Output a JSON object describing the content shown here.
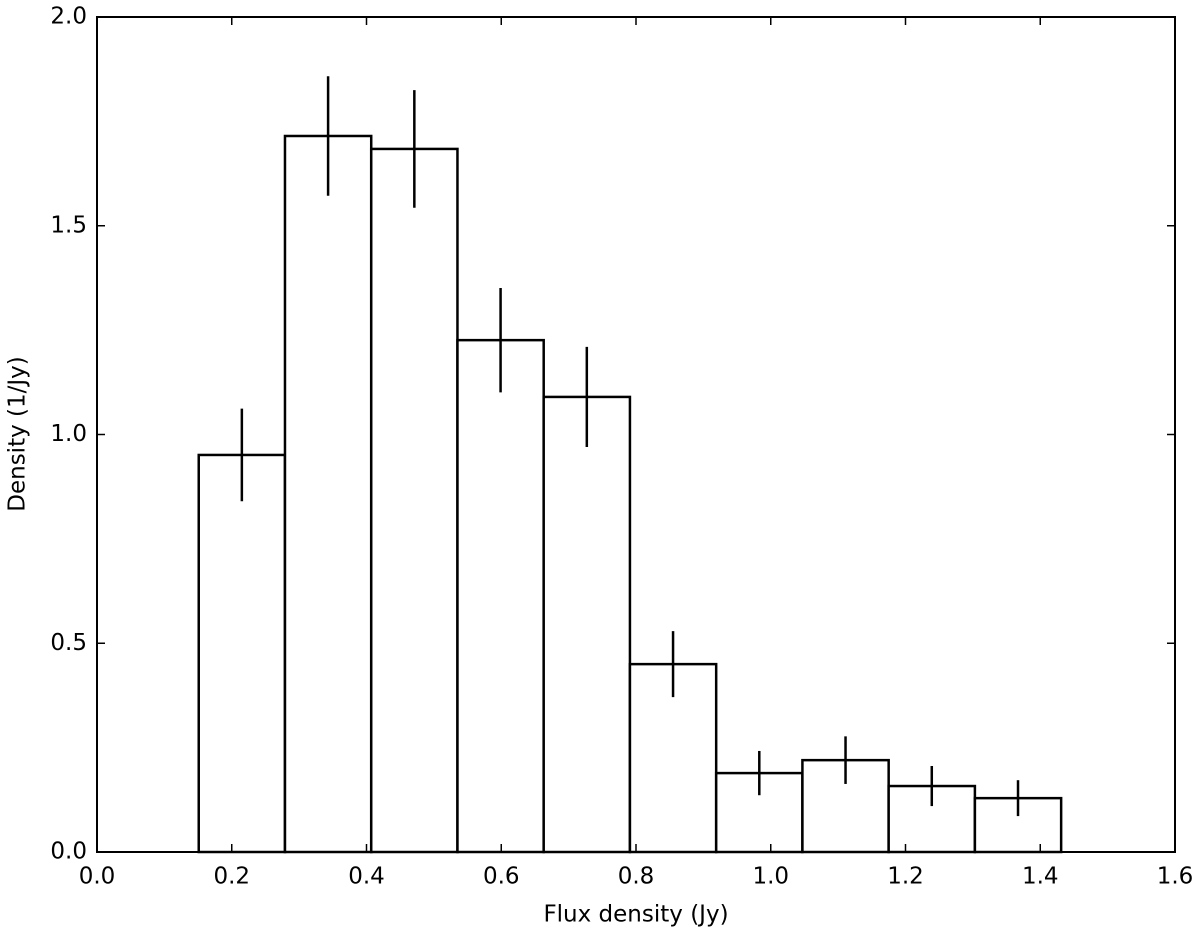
{
  "chart_data": {
    "type": "histogram",
    "xlabel": "Flux density (Jy)",
    "ylabel": "Density (1/Jy)",
    "bins": [
      0.151,
      0.279,
      0.407,
      0.535,
      0.663,
      0.791,
      0.919,
      1.047,
      1.175,
      1.303,
      1.431
    ],
    "values": [
      0.951,
      1.715,
      1.684,
      1.226,
      1.09,
      0.45,
      0.189,
      0.22,
      0.158,
      0.129
    ],
    "errors": [
      0.111,
      0.143,
      0.141,
      0.125,
      0.12,
      0.079,
      0.053,
      0.057,
      0.048,
      0.043
    ],
    "color": "#ffffff",
    "edgecolor": "#000000",
    "xlim": [
      0,
      1.6
    ],
    "ylim": [
      0,
      2
    ],
    "xticks": [
      {
        "value": 0,
        "label": "0.0"
      },
      0.2,
      0.4,
      0.6,
      0.8,
      {
        "value": 1,
        "label": "1.0"
      },
      1.2,
      1.4,
      1.6
    ],
    "yticks": [
      {
        "value": 0,
        "label": "0.0"
      },
      0.5,
      {
        "value": 1,
        "label": "1.0"
      },
      1.5,
      {
        "value": 2,
        "label": "2.0"
      }
    ],
    "grid": false
  }
}
